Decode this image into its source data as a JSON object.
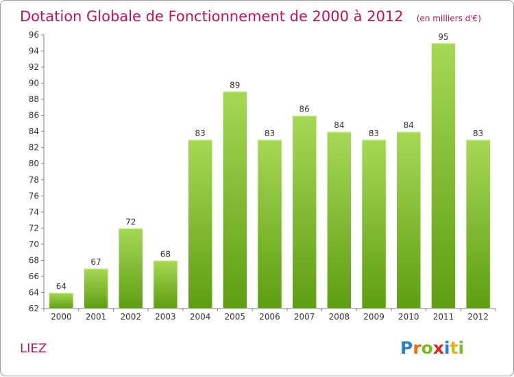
{
  "chart_data": {
    "type": "bar",
    "title": "Dotation Globale de Fonctionnement de 2000 à 2012",
    "subtitle": "(en milliers d'€)",
    "categories": [
      "2000",
      "2001",
      "2002",
      "2003",
      "2004",
      "2005",
      "2006",
      "2007",
      "2008",
      "2009",
      "2010",
      "2011",
      "2012"
    ],
    "values": [
      64,
      67,
      72,
      68,
      83,
      89,
      83,
      86,
      84,
      83,
      84,
      95,
      83
    ],
    "ylim": [
      62,
      96
    ],
    "yticks": [
      62,
      64,
      66,
      68,
      70,
      72,
      74,
      76,
      78,
      80,
      82,
      84,
      86,
      88,
      90,
      92,
      94,
      96
    ],
    "grid": false,
    "bar_color_top": "#a6d854",
    "bar_color_bottom": "#5e9e12"
  },
  "place_name": "LIEZ",
  "logo": {
    "letters": [
      "P",
      "r",
      "o",
      "x",
      "i",
      "t",
      "i"
    ],
    "colors": [
      "#2f7fc4",
      "#e36c0a",
      "#7cb82f",
      "#d62a2a",
      "#2f7fc4",
      "#e8b20f",
      "#7cb82f"
    ]
  }
}
